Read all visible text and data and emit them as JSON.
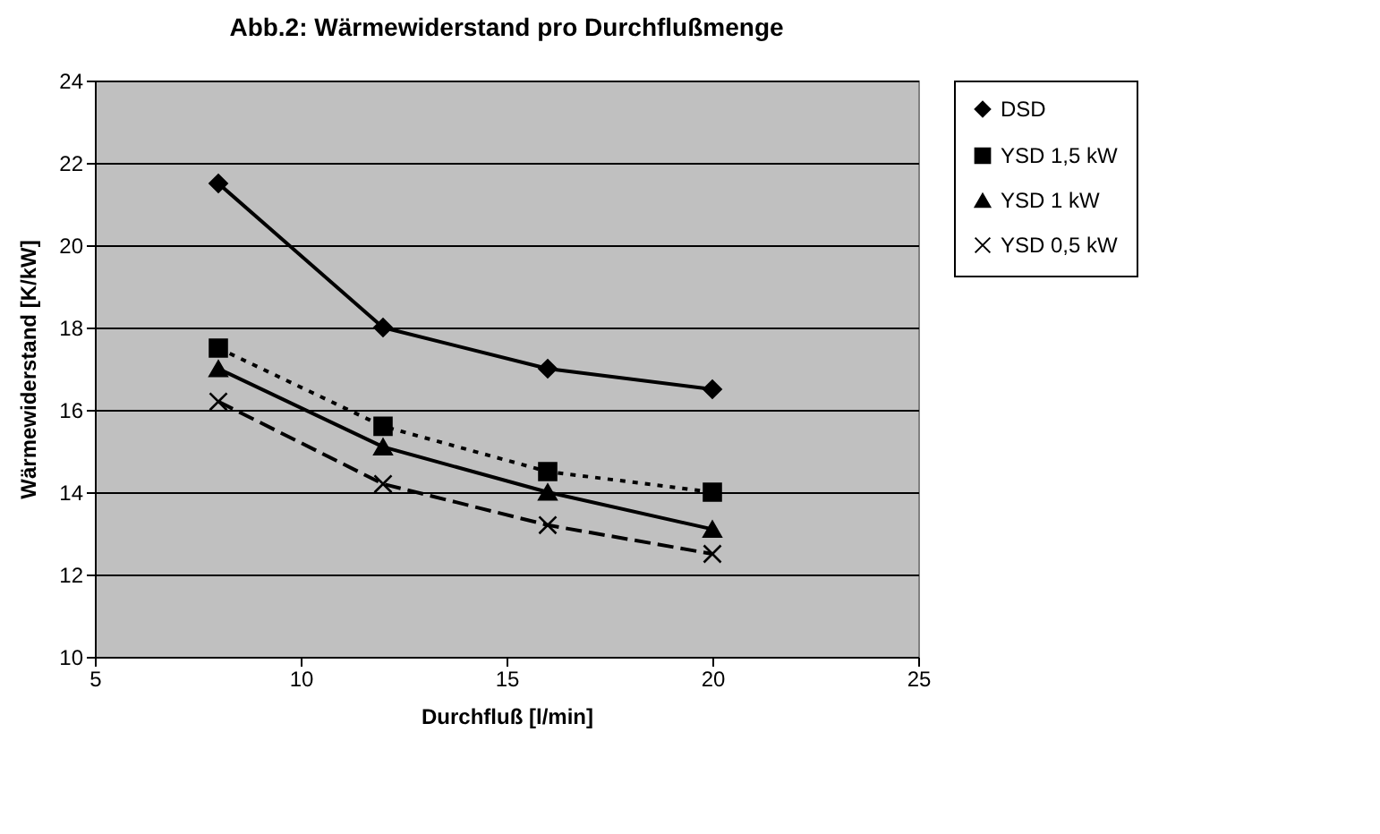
{
  "chart_data": {
    "type": "line",
    "title": "Abb.2: Wärmewiderstand pro Durchflußmenge",
    "xlabel": "Durchfluß [l/min]",
    "ylabel": "Wärmewiderstand [K/kW]",
    "x": [
      8,
      12,
      16,
      20
    ],
    "series": [
      {
        "name": "DSD",
        "color": "#000000",
        "marker": "diamond",
        "line_style": "solid",
        "values": [
          21.5,
          18,
          17,
          16.5
        ]
      },
      {
        "name": "YSD 1,5 kW",
        "color": "#000000",
        "marker": "square",
        "line_style": "dotted",
        "values": [
          17.5,
          15.6,
          14.5,
          14
        ]
      },
      {
        "name": "YSD 1 kW",
        "color": "#000000",
        "marker": "triangle",
        "line_style": "solid",
        "values": [
          17,
          15.1,
          14,
          13.1
        ]
      },
      {
        "name": "YSD 0,5 kW",
        "color": "#000000",
        "marker": "cross",
        "line_style": "dashed",
        "values": [
          16.2,
          14.2,
          13.2,
          12.5
        ]
      }
    ],
    "xlim": [
      5,
      25
    ],
    "xticks": [
      5,
      10,
      15,
      20,
      25
    ],
    "ylim": [
      10,
      24
    ],
    "yticks": [
      10,
      12,
      14,
      16,
      18,
      20,
      22,
      24
    ],
    "grid": "y",
    "legend": "right"
  }
}
